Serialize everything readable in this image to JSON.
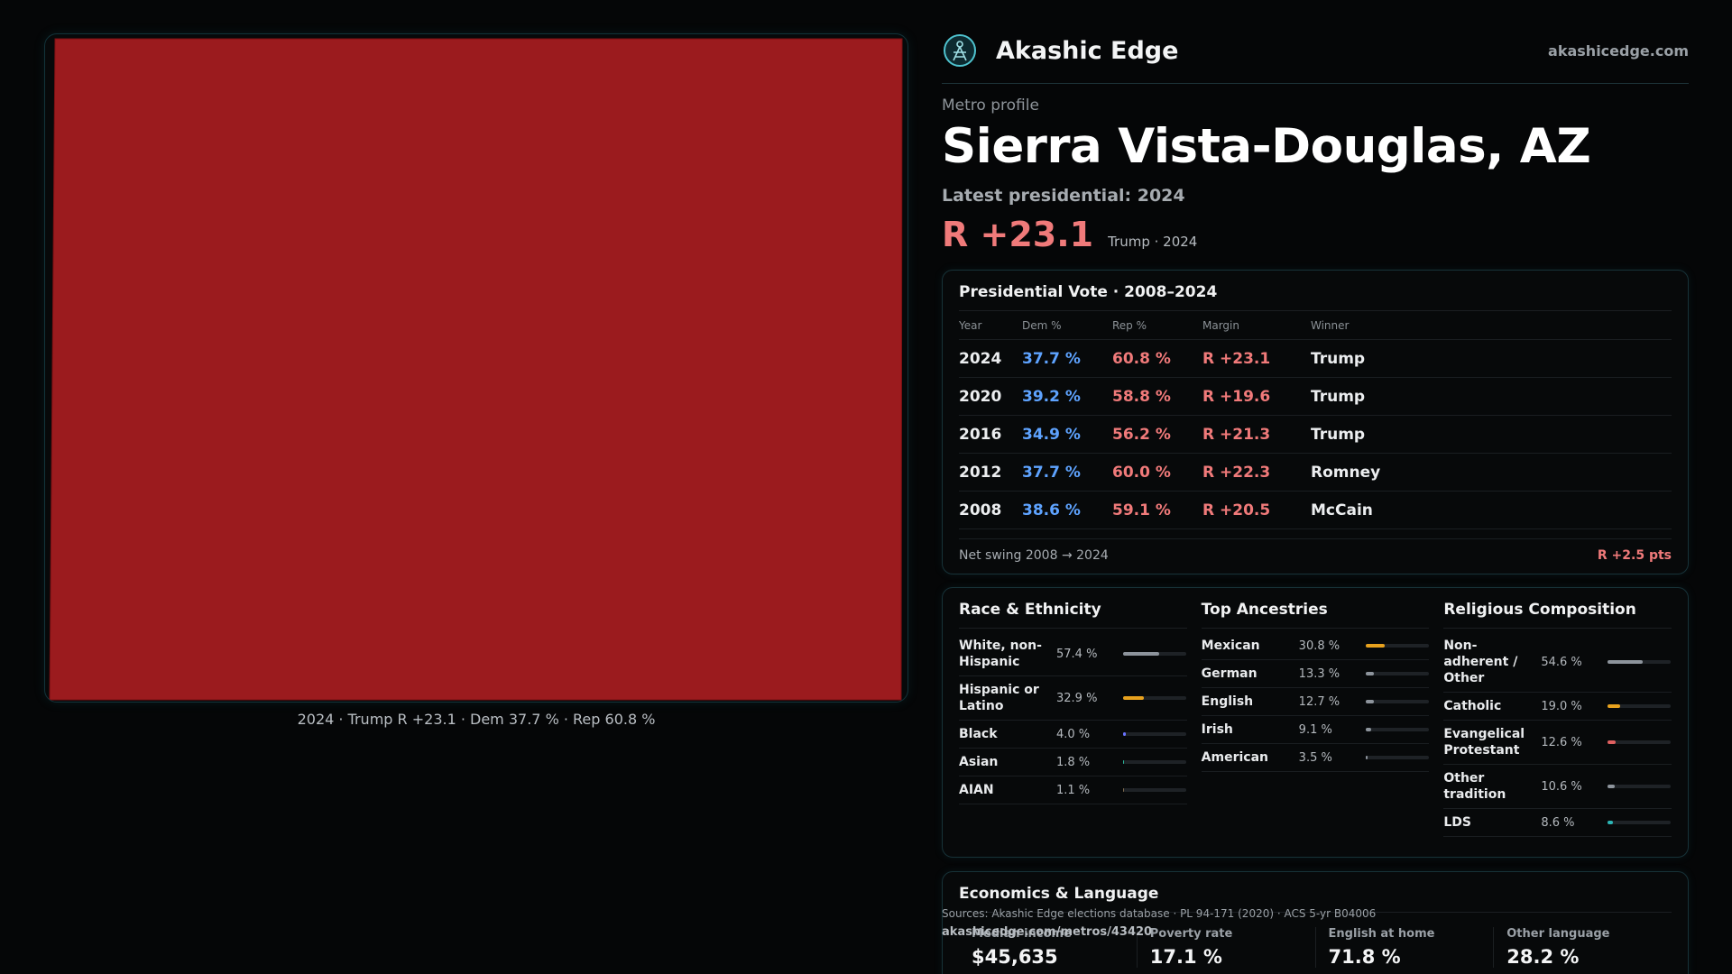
{
  "map": {
    "fill_color": "#9b1b1e",
    "caption": "2024 · Trump R +23.1 · Dem 37.7 % · Rep 60.8 %"
  },
  "brand": {
    "name": "Akashic Edge",
    "site": "akashicedge.com",
    "accent": "#4fc3cf"
  },
  "profile": {
    "kicker": "Metro profile",
    "title": "Sierra Vista-Douglas, AZ",
    "latest_label": "Latest presidential: 2024",
    "margin": "R +23.1",
    "winner_year": "Trump · 2024"
  },
  "vote": {
    "title": "Presidential Vote · 2008–2024",
    "headers": [
      "Year",
      "Dem %",
      "Rep %",
      "Margin",
      "Winner"
    ],
    "rows": [
      {
        "year": "2024",
        "dem": "37.7 %",
        "rep": "60.8 %",
        "margin": "R +23.1",
        "winner": "Trump"
      },
      {
        "year": "2020",
        "dem": "39.2 %",
        "rep": "58.8 %",
        "margin": "R +19.6",
        "winner": "Trump"
      },
      {
        "year": "2016",
        "dem": "34.9 %",
        "rep": "56.2 %",
        "margin": "R +21.3",
        "winner": "Trump"
      },
      {
        "year": "2012",
        "dem": "37.7 %",
        "rep": "60.0 %",
        "margin": "R +22.3",
        "winner": "Romney"
      },
      {
        "year": "2008",
        "dem": "38.6 %",
        "rep": "59.1 %",
        "margin": "R +20.5",
        "winner": "McCain"
      }
    ],
    "net_swing_label": "Net swing 2008 → 2024",
    "net_swing_value": "R +2.5 pts"
  },
  "race": {
    "title": "Race & Ethnicity",
    "items": [
      {
        "label": "White, non-Hispanic",
        "pct": "57.4 %",
        "share": 57.4,
        "color": "#8d949c"
      },
      {
        "label": "Hispanic or Latino",
        "pct": "32.9 %",
        "share": 32.9,
        "color": "#e8a21e"
      },
      {
        "label": "Black",
        "pct": "4.0 %",
        "share": 4.0,
        "color": "#6a73ff"
      },
      {
        "label": "Asian",
        "pct": "1.8 %",
        "share": 1.8,
        "color": "#2bb59a"
      },
      {
        "label": "AIAN",
        "pct": "1.1 %",
        "share": 1.1,
        "color": "#7d6a4e"
      }
    ]
  },
  "ancestry": {
    "title": "Top Ancestries",
    "items": [
      {
        "label": "Mexican",
        "pct": "30.8 %",
        "share": 30.8,
        "color": "#e8a21e"
      },
      {
        "label": "German",
        "pct": "13.3 %",
        "share": 13.3,
        "color": "#8d949c"
      },
      {
        "label": "English",
        "pct": "12.7 %",
        "share": 12.7,
        "color": "#8d949c"
      },
      {
        "label": "Irish",
        "pct": "9.1 %",
        "share": 9.1,
        "color": "#8d949c"
      },
      {
        "label": "American",
        "pct": "3.5 %",
        "share": 3.5,
        "color": "#8d949c"
      }
    ]
  },
  "religion": {
    "title": "Religious Composition",
    "items": [
      {
        "label": "Non-adherent / Other",
        "pct": "54.6 %",
        "share": 54.6,
        "color": "#8d949c"
      },
      {
        "label": "Catholic",
        "pct": "19.0 %",
        "share": 19.0,
        "color": "#e8a21e"
      },
      {
        "label": "Evangelical Protestant",
        "pct": "12.6 %",
        "share": 12.6,
        "color": "#e06060"
      },
      {
        "label": "Other tradition",
        "pct": "10.6 %",
        "share": 10.6,
        "color": "#8d949c"
      },
      {
        "label": "LDS",
        "pct": "8.6 %",
        "share": 8.6,
        "color": "#2bb5b5"
      }
    ]
  },
  "economics": {
    "title": "Economics & Language",
    "stats": [
      {
        "label": "Median income",
        "value": "$45,635"
      },
      {
        "label": "Poverty rate",
        "value": "17.1 %"
      },
      {
        "label": "English at home",
        "value": "71.8 %"
      },
      {
        "label": "Other language",
        "value": "28.2 %"
      }
    ]
  },
  "footer": {
    "sources": "Sources: Akashic Edge elections database · PL 94-171 (2020) · ACS 5-yr B04006",
    "permalink": "akashicedge.com/metros/43420"
  }
}
